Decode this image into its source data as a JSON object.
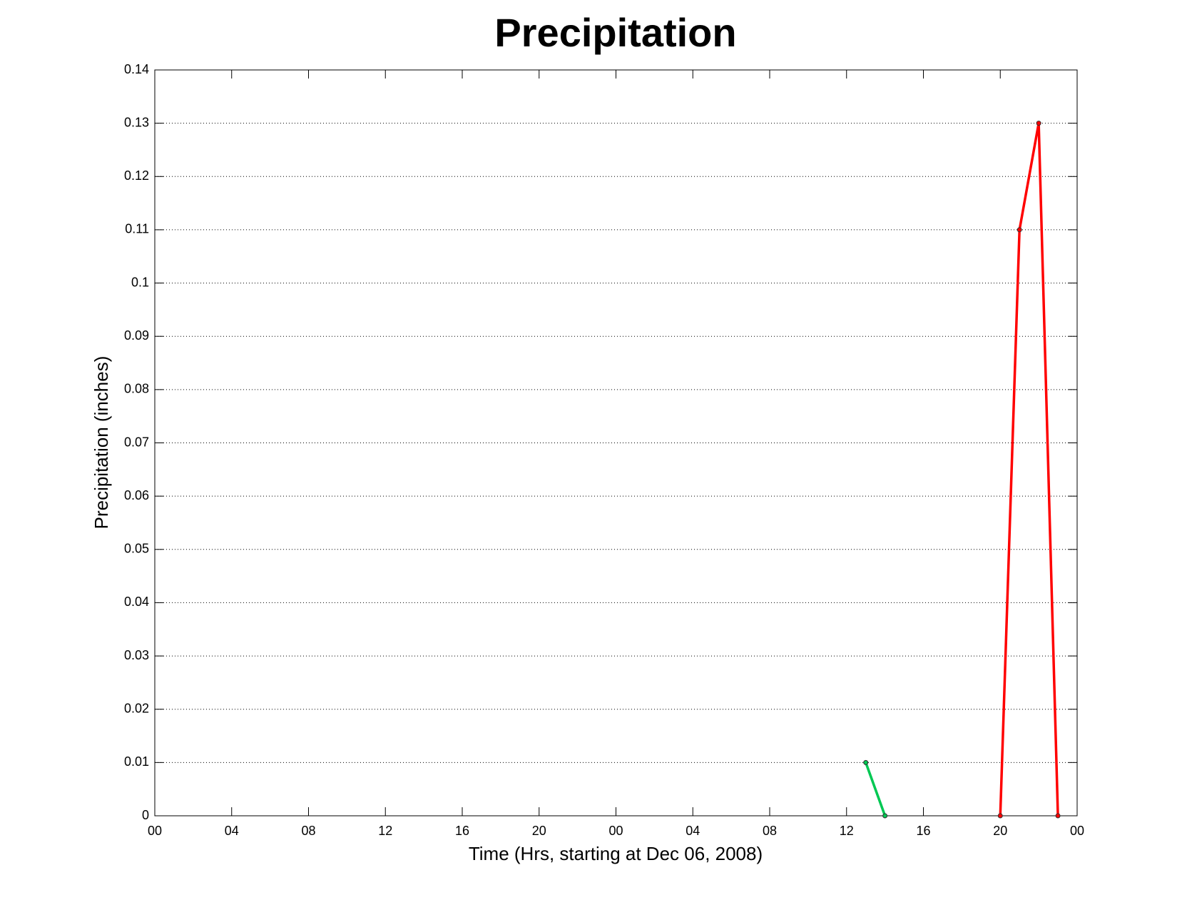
{
  "chart_data": {
    "type": "line",
    "title": "Precipitation",
    "xlabel": "Time (Hrs, starting at Dec 06, 2008)",
    "ylabel": "Precipitation (inches)",
    "xlim": [
      0,
      48
    ],
    "xticks": [
      {
        "value": 0,
        "label": "00"
      },
      {
        "value": 4,
        "label": "04"
      },
      {
        "value": 8,
        "label": "08"
      },
      {
        "value": 12,
        "label": "12"
      },
      {
        "value": 16,
        "label": "16"
      },
      {
        "value": 20,
        "label": "20"
      },
      {
        "value": 24,
        "label": "00"
      },
      {
        "value": 28,
        "label": "04"
      },
      {
        "value": 32,
        "label": "08"
      },
      {
        "value": 36,
        "label": "12"
      },
      {
        "value": 40,
        "label": "16"
      },
      {
        "value": 44,
        "label": "20"
      },
      {
        "value": 48,
        "label": "00"
      }
    ],
    "ylim": [
      0,
      0.14
    ],
    "yticks": [
      0,
      0.01,
      0.02,
      0.03,
      0.04,
      0.05,
      0.06,
      0.07,
      0.08,
      0.09,
      0.1,
      0.11,
      0.12,
      0.13,
      0.14
    ],
    "grid": true,
    "series": [
      {
        "color": "#00c853",
        "x": [
          37,
          38
        ],
        "values": [
          0.01,
          0
        ]
      },
      {
        "color": "#ff0000",
        "x": [
          44,
          45,
          46,
          47
        ],
        "values": [
          0,
          0.11,
          0.13,
          0
        ]
      }
    ]
  }
}
